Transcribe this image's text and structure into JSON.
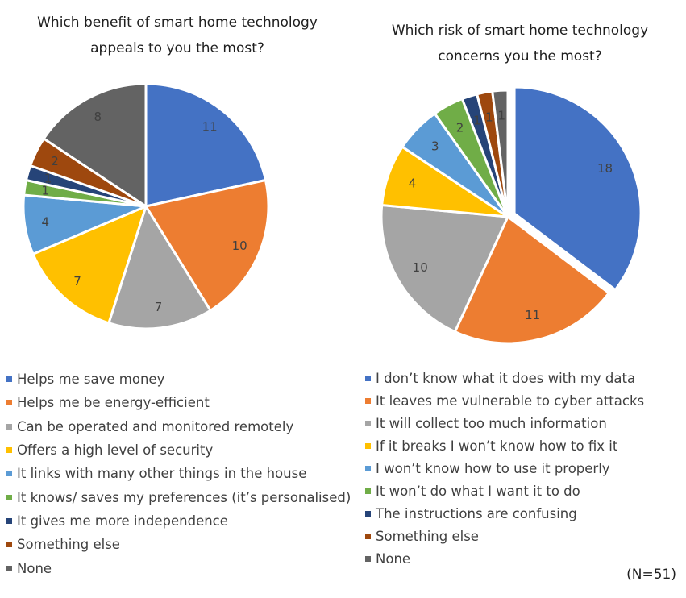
{
  "note": "(N=51)",
  "chart_data": [
    {
      "type": "pie",
      "title": "Which benefit of smart home technology appeals to you the most?",
      "title_lines": [
        "Which benefit of smart home technology",
        "appeals to you the most?"
      ],
      "labels": [
        "Helps me save money",
        "Helps me be energy-efficient",
        "Can be operated and monitored remotely",
        "Offers a high level of security",
        "It links with many other things in the house",
        "It knows/ saves my preferences (it’s personalised)",
        "It gives me more independence",
        "Something else",
        "None"
      ],
      "values": [
        11,
        10,
        7,
        7,
        4,
        1,
        1,
        2,
        8
      ],
      "colors": [
        "#4472C4",
        "#ED7D31",
        "#A5A5A5",
        "#FFC000",
        "#5B9BD5",
        "#70AD47",
        "#264478",
        "#9E480E",
        "#636363"
      ],
      "legend": "bottom"
    },
    {
      "type": "pie",
      "title": "Which risk of smart home technology concerns you the most?",
      "title_lines": [
        "Which risk of smart home technology",
        "concerns you the most?"
      ],
      "labels": [
        "I don’t know what it does with my data",
        "It leaves me vulnerable to cyber attacks",
        "It will collect too much information",
        "If it breaks I won’t know how to fix it",
        "I won’t know how to use it properly",
        "It won’t do what I want it to do",
        "The instructions are confusing",
        "Something else",
        "None"
      ],
      "values": [
        18,
        11,
        10,
        4,
        3,
        2,
        1,
        1,
        1
      ],
      "colors": [
        "#4472C4",
        "#ED7D31",
        "#A5A5A5",
        "#FFC000",
        "#5B9BD5",
        "#70AD47",
        "#264478",
        "#9E480E",
        "#636363"
      ],
      "legend": "bottom"
    }
  ]
}
